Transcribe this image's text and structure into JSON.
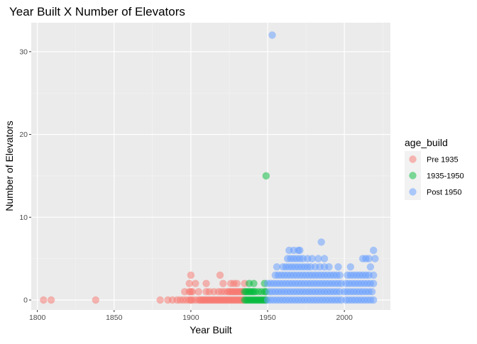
{
  "chart_data": {
    "type": "scatter",
    "title": "Year Built X Number of Elevators",
    "xlabel": "Year Built",
    "ylabel": "Number of Elevators",
    "xlim": [
      1796,
      2030
    ],
    "ylim": [
      -1.2,
      33.5
    ],
    "xticks": [
      1800,
      1850,
      1900,
      1950,
      2000
    ],
    "yticks": [
      0,
      10,
      20,
      30
    ],
    "grid": true,
    "legend": {
      "title": "age_build",
      "position": "right",
      "entries": [
        {
          "label": "Pre 1935",
          "color": "#F8766D"
        },
        {
          "label": "1935-1950",
          "color": "#00BA38"
        },
        {
          "label": "Post 1950",
          "color": "#619CFF"
        }
      ]
    },
    "series": [
      {
        "name": "Pre 1935",
        "color": "#F8766D",
        "points": [
          [
            1804,
            0
          ],
          [
            1809,
            0
          ],
          [
            1838,
            0
          ],
          [
            1880,
            0
          ],
          [
            1885,
            0
          ],
          [
            1888,
            0
          ],
          [
            1891,
            0
          ],
          [
            1893,
            0
          ],
          [
            1895,
            0
          ],
          [
            1897,
            0
          ],
          [
            1899,
            0
          ],
          [
            1900,
            0
          ],
          [
            1901,
            0
          ],
          [
            1903,
            0
          ],
          [
            1905,
            0
          ],
          [
            1906,
            0
          ],
          [
            1907,
            0
          ],
          [
            1908,
            0
          ],
          [
            1909,
            0
          ],
          [
            1910,
            0
          ],
          [
            1911,
            0
          ],
          [
            1912,
            0
          ],
          [
            1913,
            0
          ],
          [
            1914,
            0
          ],
          [
            1915,
            0
          ],
          [
            1916,
            0
          ],
          [
            1917,
            0
          ],
          [
            1918,
            0
          ],
          [
            1919,
            0
          ],
          [
            1920,
            0
          ],
          [
            1921,
            0
          ],
          [
            1922,
            0
          ],
          [
            1923,
            0
          ],
          [
            1924,
            0
          ],
          [
            1925,
            0
          ],
          [
            1926,
            0
          ],
          [
            1927,
            0
          ],
          [
            1928,
            0
          ],
          [
            1929,
            0
          ],
          [
            1930,
            0
          ],
          [
            1931,
            0
          ],
          [
            1932,
            0
          ],
          [
            1933,
            0
          ],
          [
            1934,
            0
          ],
          [
            1896,
            1
          ],
          [
            1899,
            1
          ],
          [
            1900,
            1
          ],
          [
            1901,
            1
          ],
          [
            1905,
            1
          ],
          [
            1910,
            1
          ],
          [
            1912,
            1
          ],
          [
            1915,
            1
          ],
          [
            1918,
            1
          ],
          [
            1920,
            1
          ],
          [
            1922,
            1
          ],
          [
            1924,
            1
          ],
          [
            1925,
            1
          ],
          [
            1926,
            1
          ],
          [
            1927,
            1
          ],
          [
            1928,
            1
          ],
          [
            1929,
            1
          ],
          [
            1930,
            1
          ],
          [
            1931,
            1
          ],
          [
            1932,
            1
          ],
          [
            1933,
            1
          ],
          [
            1934,
            1
          ],
          [
            1899,
            2
          ],
          [
            1903,
            2
          ],
          [
            1910,
            2
          ],
          [
            1921,
            2
          ],
          [
            1926,
            2
          ],
          [
            1928,
            2
          ],
          [
            1930,
            2
          ],
          [
            1935,
            2
          ],
          [
            1900,
            3
          ],
          [
            1919,
            3
          ]
        ]
      },
      {
        "name": "1935-1950",
        "color": "#00BA38",
        "points": [
          [
            1935,
            0
          ],
          [
            1936,
            0
          ],
          [
            1937,
            0
          ],
          [
            1938,
            0
          ],
          [
            1939,
            0
          ],
          [
            1940,
            0
          ],
          [
            1941,
            0
          ],
          [
            1942,
            0
          ],
          [
            1943,
            0
          ],
          [
            1944,
            0
          ],
          [
            1945,
            0
          ],
          [
            1946,
            0
          ],
          [
            1947,
            0
          ],
          [
            1948,
            0
          ],
          [
            1949,
            0
          ],
          [
            1935,
            1
          ],
          [
            1936,
            1
          ],
          [
            1937,
            1
          ],
          [
            1938,
            1
          ],
          [
            1939,
            1
          ],
          [
            1940,
            1
          ],
          [
            1941,
            1
          ],
          [
            1942,
            1
          ],
          [
            1944,
            1
          ],
          [
            1946,
            1
          ],
          [
            1948,
            1
          ],
          [
            1949,
            1
          ],
          [
            1938,
            2
          ],
          [
            1941,
            2
          ],
          [
            1948,
            2
          ],
          [
            1949,
            15
          ]
        ]
      },
      {
        "name": "Post 1950",
        "color": "#619CFF",
        "points": [
          [
            1950,
            0
          ],
          [
            1952,
            0
          ],
          [
            1954,
            0
          ],
          [
            1956,
            0
          ],
          [
            1958,
            0
          ],
          [
            1960,
            0
          ],
          [
            1962,
            0
          ],
          [
            1964,
            0
          ],
          [
            1966,
            0
          ],
          [
            1968,
            0
          ],
          [
            1970,
            0
          ],
          [
            1972,
            0
          ],
          [
            1974,
            0
          ],
          [
            1976,
            0
          ],
          [
            1978,
            0
          ],
          [
            1980,
            0
          ],
          [
            1982,
            0
          ],
          [
            1984,
            0
          ],
          [
            1986,
            0
          ],
          [
            1988,
            0
          ],
          [
            1990,
            0
          ],
          [
            1992,
            0
          ],
          [
            1994,
            0
          ],
          [
            1996,
            0
          ],
          [
            1998,
            0
          ],
          [
            2001,
            0
          ],
          [
            2003,
            0
          ],
          [
            2005,
            0
          ],
          [
            2007,
            0
          ],
          [
            2009,
            0
          ],
          [
            2011,
            0
          ],
          [
            2013,
            0
          ],
          [
            2015,
            0
          ],
          [
            2017,
            0
          ],
          [
            2019,
            0
          ],
          [
            1951,
            1
          ],
          [
            1953,
            1
          ],
          [
            1955,
            1
          ],
          [
            1957,
            1
          ],
          [
            1959,
            1
          ],
          [
            1961,
            1
          ],
          [
            1963,
            1
          ],
          [
            1965,
            1
          ],
          [
            1967,
            1
          ],
          [
            1969,
            1
          ],
          [
            1971,
            1
          ],
          [
            1973,
            1
          ],
          [
            1975,
            1
          ],
          [
            1977,
            1
          ],
          [
            1979,
            1
          ],
          [
            1981,
            1
          ],
          [
            1983,
            1
          ],
          [
            1985,
            1
          ],
          [
            1987,
            1
          ],
          [
            1989,
            1
          ],
          [
            1991,
            1
          ],
          [
            1993,
            1
          ],
          [
            1995,
            1
          ],
          [
            1997,
            1
          ],
          [
            2000,
            1
          ],
          [
            2002,
            1
          ],
          [
            2004,
            1
          ],
          [
            2006,
            1
          ],
          [
            2008,
            1
          ],
          [
            2010,
            1
          ],
          [
            2012,
            1
          ],
          [
            2014,
            1
          ],
          [
            2016,
            1
          ],
          [
            2018,
            1
          ],
          [
            1950,
            2
          ],
          [
            1952,
            2
          ],
          [
            1954,
            2
          ],
          [
            1956,
            2
          ],
          [
            1958,
            2
          ],
          [
            1960,
            2
          ],
          [
            1962,
            2
          ],
          [
            1964,
            2
          ],
          [
            1966,
            2
          ],
          [
            1968,
            2
          ],
          [
            1970,
            2
          ],
          [
            1972,
            2
          ],
          [
            1974,
            2
          ],
          [
            1976,
            2
          ],
          [
            1978,
            2
          ],
          [
            1980,
            2
          ],
          [
            1982,
            2
          ],
          [
            1984,
            2
          ],
          [
            1986,
            2
          ],
          [
            1988,
            2
          ],
          [
            1990,
            2
          ],
          [
            1992,
            2
          ],
          [
            1994,
            2
          ],
          [
            1996,
            2
          ],
          [
            1998,
            2
          ],
          [
            2001,
            2
          ],
          [
            2003,
            2
          ],
          [
            2005,
            2
          ],
          [
            2007,
            2
          ],
          [
            2009,
            2
          ],
          [
            2011,
            2
          ],
          [
            2013,
            2
          ],
          [
            2015,
            2
          ],
          [
            2017,
            2
          ],
          [
            2019,
            2
          ],
          [
            1955,
            3
          ],
          [
            1957,
            3
          ],
          [
            1959,
            3
          ],
          [
            1961,
            3
          ],
          [
            1963,
            3
          ],
          [
            1965,
            3
          ],
          [
            1967,
            3
          ],
          [
            1969,
            3
          ],
          [
            1971,
            3
          ],
          [
            1973,
            3
          ],
          [
            1975,
            3
          ],
          [
            1977,
            3
          ],
          [
            1979,
            3
          ],
          [
            1981,
            3
          ],
          [
            1983,
            3
          ],
          [
            1985,
            3
          ],
          [
            1987,
            3
          ],
          [
            1989,
            3
          ],
          [
            1991,
            3
          ],
          [
            1993,
            3
          ],
          [
            1995,
            3
          ],
          [
            1997,
            3
          ],
          [
            2002,
            3
          ],
          [
            2004,
            3
          ],
          [
            2006,
            3
          ],
          [
            2008,
            3
          ],
          [
            2010,
            3
          ],
          [
            2012,
            3
          ],
          [
            2014,
            3
          ],
          [
            2016,
            3
          ],
          [
            2019,
            3
          ],
          [
            1956,
            4
          ],
          [
            1960,
            4
          ],
          [
            1962,
            4
          ],
          [
            1964,
            4
          ],
          [
            1966,
            4
          ],
          [
            1968,
            4
          ],
          [
            1970,
            4
          ],
          [
            1972,
            4
          ],
          [
            1974,
            4
          ],
          [
            1976,
            4
          ],
          [
            1978,
            4
          ],
          [
            1981,
            4
          ],
          [
            1984,
            4
          ],
          [
            1987,
            4
          ],
          [
            1990,
            4
          ],
          [
            1996,
            4
          ],
          [
            2004,
            4
          ],
          [
            2017,
            4
          ],
          [
            1963,
            5
          ],
          [
            1965,
            5
          ],
          [
            1967,
            5
          ],
          [
            1969,
            5
          ],
          [
            1971,
            5
          ],
          [
            1973,
            5
          ],
          [
            1976,
            5
          ],
          [
            1979,
            5
          ],
          [
            1983,
            5
          ],
          [
            1987,
            5
          ],
          [
            2012,
            5
          ],
          [
            2014,
            5
          ],
          [
            2016,
            5
          ],
          [
            2020,
            5
          ],
          [
            1964,
            6
          ],
          [
            1967,
            6
          ],
          [
            1970,
            6
          ],
          [
            1971,
            6
          ],
          [
            2019,
            6
          ],
          [
            1985,
            7
          ],
          [
            1953,
            32
          ]
        ]
      }
    ]
  }
}
